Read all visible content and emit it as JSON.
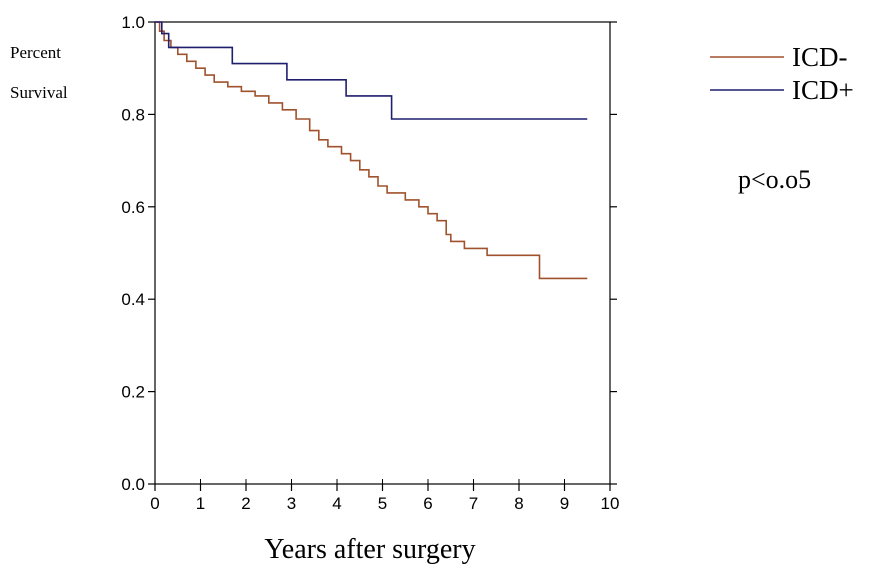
{
  "chart_data": {
    "type": "line",
    "step": true,
    "xlabel": "Years after surgery",
    "ylabel_lines": [
      "Percent",
      "Survival"
    ],
    "xlim": [
      0,
      10
    ],
    "ylim": [
      0,
      1
    ],
    "x_ticks": [
      "0",
      "1",
      "2",
      "3",
      "4",
      "5",
      "6",
      "7",
      "8",
      "9",
      "10"
    ],
    "y_ticks": [
      "0.0",
      "0.2",
      "0.4",
      "0.6",
      "0.8",
      "1.0"
    ],
    "legend_position": "top-right",
    "grid": false,
    "annotation": "p<o.o5",
    "series": [
      {
        "name": "ICD-",
        "color": "#a0522d",
        "points": [
          [
            0,
            1.0
          ],
          [
            0.1,
            0.98
          ],
          [
            0.2,
            0.96
          ],
          [
            0.35,
            0.945
          ],
          [
            0.5,
            0.93
          ],
          [
            0.7,
            0.915
          ],
          [
            0.9,
            0.9
          ],
          [
            1.1,
            0.885
          ],
          [
            1.3,
            0.87
          ],
          [
            1.6,
            0.86
          ],
          [
            1.9,
            0.85
          ],
          [
            2.2,
            0.84
          ],
          [
            2.5,
            0.825
          ],
          [
            2.8,
            0.81
          ],
          [
            3.1,
            0.79
          ],
          [
            3.4,
            0.765
          ],
          [
            3.6,
            0.745
          ],
          [
            3.8,
            0.73
          ],
          [
            4.1,
            0.715
          ],
          [
            4.3,
            0.7
          ],
          [
            4.5,
            0.68
          ],
          [
            4.7,
            0.665
          ],
          [
            4.9,
            0.645
          ],
          [
            5.1,
            0.63
          ],
          [
            5.5,
            0.615
          ],
          [
            5.8,
            0.6
          ],
          [
            6.0,
            0.585
          ],
          [
            6.2,
            0.57
          ],
          [
            6.4,
            0.54
          ],
          [
            6.5,
            0.525
          ],
          [
            6.8,
            0.51
          ],
          [
            7.3,
            0.495
          ],
          [
            8.45,
            0.445
          ],
          [
            9.5,
            0.445
          ]
        ]
      },
      {
        "name": "ICD+",
        "color": "#1f1f6e",
        "points": [
          [
            0,
            1.0
          ],
          [
            0.15,
            0.975
          ],
          [
            0.3,
            0.945
          ],
          [
            1.7,
            0.91
          ],
          [
            2.9,
            0.875
          ],
          [
            4.2,
            0.84
          ],
          [
            5.2,
            0.79
          ],
          [
            9.5,
            0.79
          ]
        ]
      }
    ]
  }
}
